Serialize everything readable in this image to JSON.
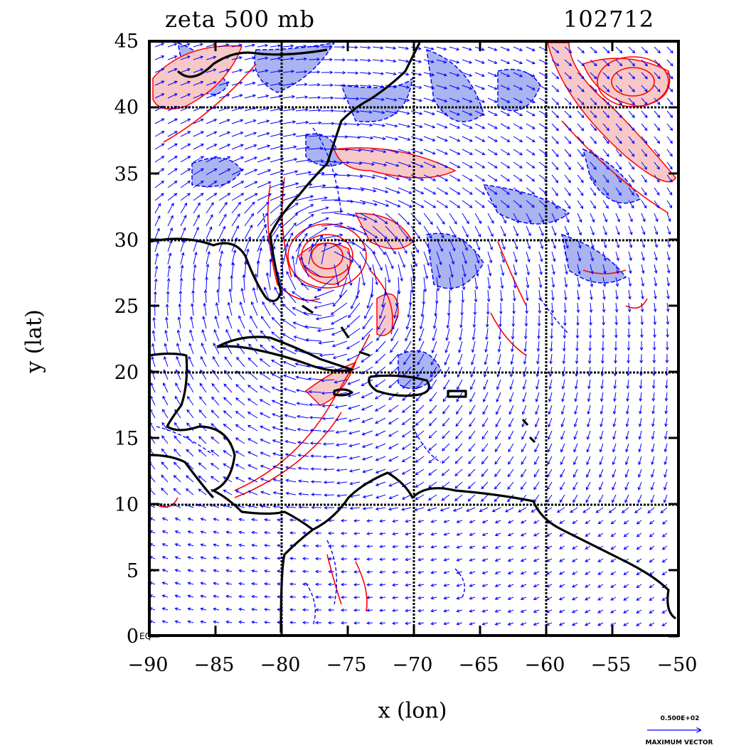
{
  "title_left": "zeta 500 mb",
  "title_right": "102712",
  "xlabel": "x (lon)",
  "ylabel": "y (lat)",
  "x_ticks": [
    "−90",
    "−85",
    "−80",
    "−75",
    "−70",
    "−65",
    "−60",
    "−55",
    "−50"
  ],
  "y_ticks": [
    "45",
    "40",
    "35",
    "30",
    "25",
    "20",
    "15",
    "10",
    "5",
    "0"
  ],
  "equator_label": "EQ",
  "vector_key": {
    "value": "0.500E+02",
    "label": "MAXIMUM VECTOR"
  },
  "map": {
    "lon_range": [
      -90,
      -50
    ],
    "lat_range": [
      0,
      45
    ],
    "gridlines_lon": [
      -80,
      -70,
      -60
    ],
    "gridlines_lat": [
      10,
      20,
      30,
      40
    ],
    "colors": {
      "positive_contour": "#ff0000",
      "positive_fill": "#f7c8c8",
      "negative_contour": "#0000ff",
      "negative_fill": "#aab4f0",
      "vectors": "#0000ff",
      "coastline": "#000000"
    }
  }
}
